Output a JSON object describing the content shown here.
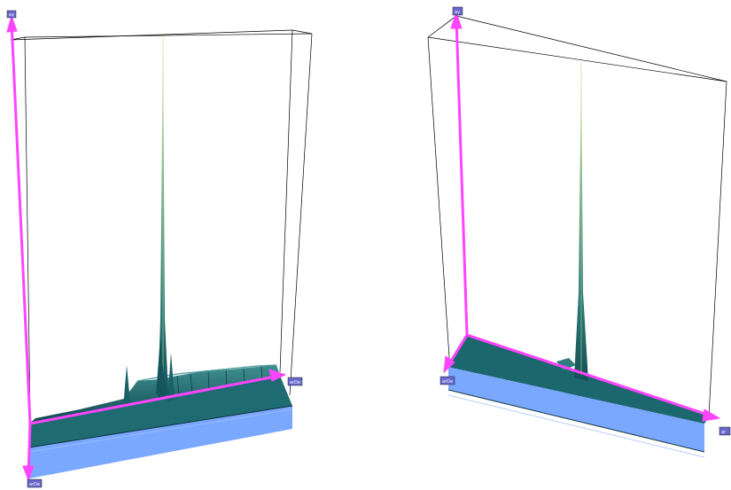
{
  "panels": [
    {
      "id": "left",
      "axis_labels": {
        "vertical": "ay",
        "right": "arDe",
        "front": "arDe"
      }
    },
    {
      "id": "right",
      "axis_labels": {
        "vertical": "ay",
        "left": "arDe",
        "right": "ar"
      }
    }
  ],
  "colors": {
    "axis": "#ff44ff",
    "surface": "#1e6b72",
    "surface_dark": "#0e3f44",
    "peak_tip": "#d6e79a",
    "base_slab": "#7ba8ff",
    "frame": "#000000",
    "label_box": "#6666cc"
  }
}
